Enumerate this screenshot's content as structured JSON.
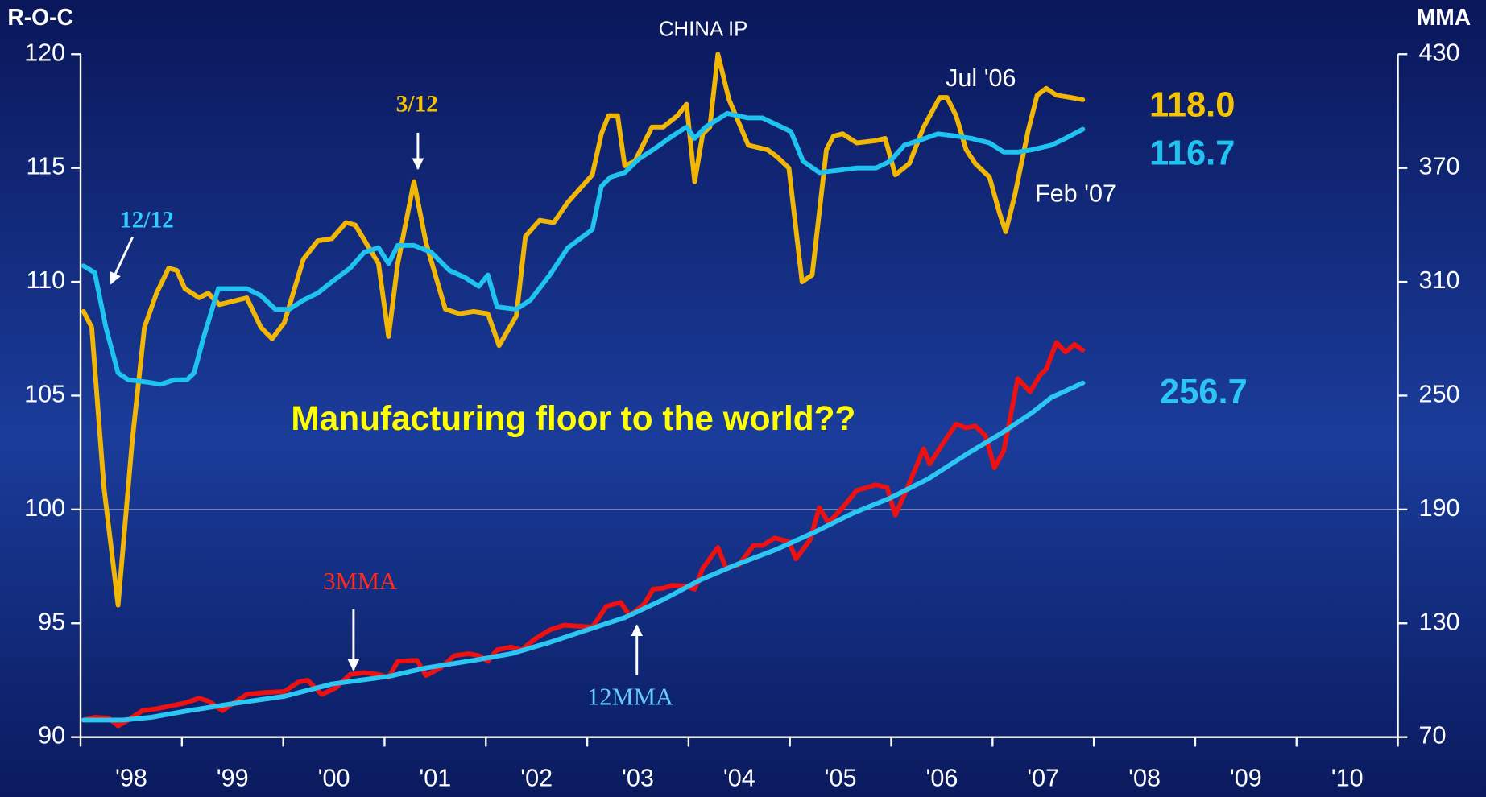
{
  "chart_data": {
    "type": "line",
    "title": "CHINA IP",
    "y_label": "R-O-C",
    "y2_label": "MMA",
    "xlim": [
      1998,
      2011
    ],
    "x_tick_marks": [
      1998,
      1999,
      2000,
      2001,
      2002,
      2003,
      2004,
      2005,
      2006,
      2007,
      2008,
      2009,
      2010,
      2011
    ],
    "xticks": [
      {
        "value": 1998.5,
        "label": "'98"
      },
      {
        "value": 1999.5,
        "label": "'99"
      },
      {
        "value": 2000.5,
        "label": "'00"
      },
      {
        "value": 2001.5,
        "label": "'01"
      },
      {
        "value": 2002.5,
        "label": "'02"
      },
      {
        "value": 2003.5,
        "label": "'03"
      },
      {
        "value": 2004.5,
        "label": "'04"
      },
      {
        "value": 2005.5,
        "label": "'05"
      },
      {
        "value": 2006.5,
        "label": "'06"
      },
      {
        "value": 2007.5,
        "label": "'07"
      },
      {
        "value": 2008.5,
        "label": "'08"
      },
      {
        "value": 2009.5,
        "label": "'09"
      },
      {
        "value": 2010.5,
        "label": "'10"
      }
    ],
    "ylim": [
      90,
      120
    ],
    "yticks": [
      90,
      95,
      100,
      105,
      110,
      115,
      120
    ],
    "y2lim": [
      70,
      430
    ],
    "y2ticks": [
      70,
      130,
      190,
      250,
      310,
      370,
      430
    ],
    "hline": 100,
    "annotations": [
      "Jul '06",
      "Feb '07",
      "Manufacturing floor to the world??"
    ],
    "series": [
      {
        "name": "3/12",
        "color": "#f2b705",
        "end_label": "118.0",
        "x": [
          1998.03,
          1998.11,
          1998.23,
          1998.37,
          1998.51,
          1998.63,
          1998.75,
          1998.87,
          1998.95,
          1999.03,
          1999.17,
          1999.26,
          1999.37,
          1999.64,
          1999.78,
          1999.89,
          2000.01,
          2000.2,
          2000.34,
          2000.48,
          2000.62,
          2000.71,
          2000.94,
          2001.04,
          2001.13,
          2001.29,
          2001.41,
          2001.6,
          2001.74,
          2001.88,
          2002.02,
          2002.13,
          2002.3,
          2002.39,
          2002.53,
          2002.67,
          2002.81,
          2003.05,
          2003.14,
          2003.21,
          2003.3,
          2003.37,
          2003.47,
          2003.64,
          2003.75,
          2003.89,
          2003.98,
          2004.06,
          2004.14,
          2004.21,
          2004.29,
          2004.4,
          2004.59,
          2004.78,
          2004.87,
          2004.99,
          2005.12,
          2005.22,
          2005.36,
          2005.43,
          2005.52,
          2005.66,
          2005.85,
          2005.94,
          2006.04,
          2006.18,
          2006.32,
          2006.48,
          2006.55,
          2006.64,
          2006.74,
          2006.83,
          2006.97,
          2007.07,
          2007.13,
          2007.22,
          2007.35,
          2007.44,
          2007.53,
          2007.63,
          2007.77,
          2007.89
        ],
        "values": [
          108.7,
          108,
          101,
          95.8,
          103,
          108,
          109.5,
          110.6,
          110.5,
          109.7,
          109.3,
          109.5,
          109,
          109.3,
          108,
          107.5,
          108.2,
          111,
          111.8,
          111.9,
          112.6,
          112.5,
          110.8,
          107.6,
          110.8,
          114.4,
          111.7,
          108.8,
          108.6,
          108.7,
          108.6,
          107.2,
          108.5,
          112,
          112.7,
          112.6,
          113.5,
          114.7,
          116.5,
          117.3,
          117.3,
          115.1,
          115.3,
          116.8,
          116.8,
          117.3,
          117.8,
          114.4,
          116.5,
          116.8,
          120,
          118,
          116,
          115.8,
          115.5,
          115,
          110,
          110.3,
          115.8,
          116.4,
          116.5,
          116.1,
          116.2,
          116.3,
          114.7,
          115.2,
          116.8,
          118.1,
          118.1,
          117.3,
          115.8,
          115.2,
          114.6,
          113,
          112.2,
          113.8,
          116.6,
          118.2,
          118.5,
          118.2,
          118.1,
          118.0
        ]
      },
      {
        "name": "12/12",
        "color": "#1ec3f0",
        "end_label": "116.7",
        "x": [
          1998.03,
          1998.14,
          1998.25,
          1998.37,
          1998.47,
          1998.65,
          1998.79,
          1998.93,
          1999.05,
          1999.12,
          1999.21,
          1999.36,
          1999.64,
          1999.78,
          1999.92,
          2000.06,
          2000.2,
          2000.34,
          2000.48,
          2000.66,
          2000.8,
          2000.94,
          2001.04,
          2001.13,
          2001.29,
          2001.46,
          2001.64,
          2001.79,
          2001.93,
          2002.02,
          2002.11,
          2002.3,
          2002.44,
          2002.63,
          2002.81,
          2003.05,
          2003.14,
          2003.23,
          2003.37,
          2003.51,
          2003.65,
          2003.84,
          2003.98,
          2004.06,
          2004.17,
          2004.38,
          2004.59,
          2004.73,
          2004.87,
          2005.01,
          2005.13,
          2005.29,
          2005.48,
          2005.66,
          2005.85,
          2005.99,
          2006.13,
          2006.27,
          2006.46,
          2006.64,
          2006.79,
          2006.97,
          2007.11,
          2007.25,
          2007.39,
          2007.58,
          2007.72,
          2007.89
        ],
        "values": [
          110.7,
          110.4,
          108,
          106,
          105.7,
          105.6,
          105.5,
          105.7,
          105.7,
          106,
          107.5,
          109.7,
          109.7,
          109.4,
          108.8,
          108.8,
          109.2,
          109.5,
          110,
          110.6,
          111.3,
          111.5,
          110.8,
          111.6,
          111.6,
          111.3,
          110.5,
          110.2,
          109.8,
          110.3,
          108.9,
          108.8,
          109.2,
          110.3,
          111.5,
          112.3,
          114.2,
          114.6,
          114.8,
          115.4,
          115.8,
          116.4,
          116.8,
          116.3,
          116.8,
          117.4,
          117.2,
          117.2,
          116.9,
          116.6,
          115.3,
          114.8,
          114.9,
          115,
          115,
          115.3,
          116,
          116.2,
          116.5,
          116.4,
          116.3,
          116.1,
          115.7,
          115.7,
          115.8,
          116,
          116.3,
          116.7
        ]
      },
      {
        "name": "3MMA",
        "color": "#ee1111",
        "axis": "y2",
        "x": [
          1998.03,
          1998.14,
          1998.28,
          1998.37,
          1998.47,
          1998.61,
          1998.75,
          1998.89,
          1999.03,
          1999.17,
          1999.26,
          1999.4,
          1999.54,
          1999.64,
          1999.82,
          2000.01,
          2000.15,
          2000.24,
          2000.38,
          2000.52,
          2000.66,
          2000.8,
          2000.94,
          2001.04,
          2001.13,
          2001.32,
          2001.41,
          2001.55,
          2001.69,
          2001.83,
          2001.93,
          2002.02,
          2002.11,
          2002.25,
          2002.35,
          2002.49,
          2002.63,
          2002.77,
          2002.91,
          2003.05,
          2003.19,
          2003.33,
          2003.42,
          2003.56,
          2003.65,
          2003.75,
          2003.84,
          2003.98,
          2004.06,
          2004.14,
          2004.29,
          2004.37,
          2004.5,
          2004.64,
          2004.73,
          2004.85,
          2004.99,
          2005.06,
          2005.2,
          2005.29,
          2005.38,
          2005.52,
          2005.66,
          2005.76,
          2005.85,
          2005.96,
          2006.04,
          2006.18,
          2006.32,
          2006.38,
          2006.5,
          2006.64,
          2006.74,
          2006.83,
          2006.93,
          2007.02,
          2007.11,
          2007.25,
          2007.37,
          2007.47,
          2007.53,
          2007.63,
          2007.72,
          2007.81,
          2007.89
        ],
        "values": [
          79,
          80.5,
          80,
          76,
          79,
          84,
          85,
          86.5,
          88,
          90.5,
          89,
          84,
          89,
          92.5,
          93.5,
          94,
          99,
          100,
          92.5,
          96,
          103,
          104,
          103,
          101.5,
          110,
          110.5,
          102.5,
          106.5,
          113,
          114,
          113,
          110,
          116,
          117.5,
          116,
          122,
          126.5,
          129,
          128.5,
          128,
          139,
          141,
          134,
          140,
          148,
          148.5,
          150,
          149.5,
          148,
          159,
          170,
          159,
          161,
          171,
          171,
          175,
          173,
          164,
          174,
          191,
          183,
          191,
          200,
          201.5,
          203,
          201.5,
          187,
          204,
          222,
          214,
          224,
          235,
          233,
          234,
          229,
          212,
          221,
          259,
          252,
          261,
          264,
          278,
          273,
          277,
          274
        ]
      },
      {
        "name": "12MMA",
        "color": "#2cc6f2",
        "axis": "y2",
        "end_label": "256.7",
        "x": [
          1998.03,
          1998.42,
          1998.7,
          1999.07,
          1999.54,
          2000.01,
          2000.48,
          2000.76,
          2001.04,
          2001.41,
          2001.88,
          2002.25,
          2002.63,
          2003.0,
          2003.37,
          2003.75,
          2004.12,
          2004.5,
          2004.87,
          2005.24,
          2005.62,
          2005.99,
          2006.36,
          2006.74,
          2007.11,
          2007.39,
          2007.58,
          2007.89
        ],
        "values": [
          79,
          79,
          80.5,
          84,
          88,
          91.5,
          98,
          100,
          102,
          106.5,
          110.5,
          114,
          120,
          126.5,
          133,
          142.5,
          153,
          161.5,
          169,
          178,
          188,
          196,
          206,
          219,
          231,
          241,
          249,
          256.7
        ]
      }
    ]
  }
}
